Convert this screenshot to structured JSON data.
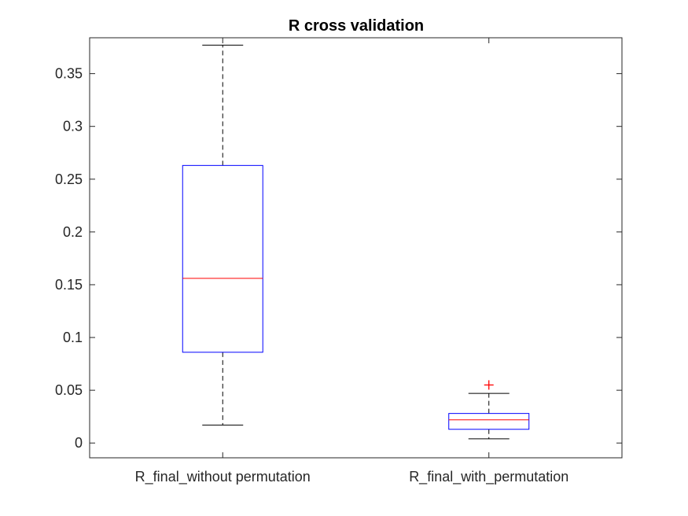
{
  "chart_data": {
    "type": "boxplot",
    "title": "R cross validation",
    "xlabel": "",
    "ylabel": "",
    "categories": [
      "R_final_without permutation",
      "R_final_with_permutation"
    ],
    "ylim": [
      -0.014,
      0.384
    ],
    "yticks": [
      0,
      0.05,
      0.1,
      0.15,
      0.2,
      0.25,
      0.3,
      0.35
    ],
    "ytick_labels": [
      "0",
      "0.05",
      "0.1",
      "0.15",
      "0.2",
      "0.25",
      "0.3",
      "0.35"
    ],
    "grid": false,
    "boxes": [
      {
        "whisker_low": 0.017,
        "q1": 0.086,
        "median": 0.156,
        "q3": 0.263,
        "whisker_high": 0.377,
        "outliers": []
      },
      {
        "whisker_low": 0.004,
        "q1": 0.013,
        "median": 0.022,
        "q3": 0.028,
        "whisker_high": 0.047,
        "outliers": [
          0.055
        ]
      }
    ],
    "colors": {
      "box": "#0000ff",
      "median": "#ff0000",
      "whisker": "#000000",
      "outlier": "#ff0000",
      "axis": "#262626"
    }
  }
}
